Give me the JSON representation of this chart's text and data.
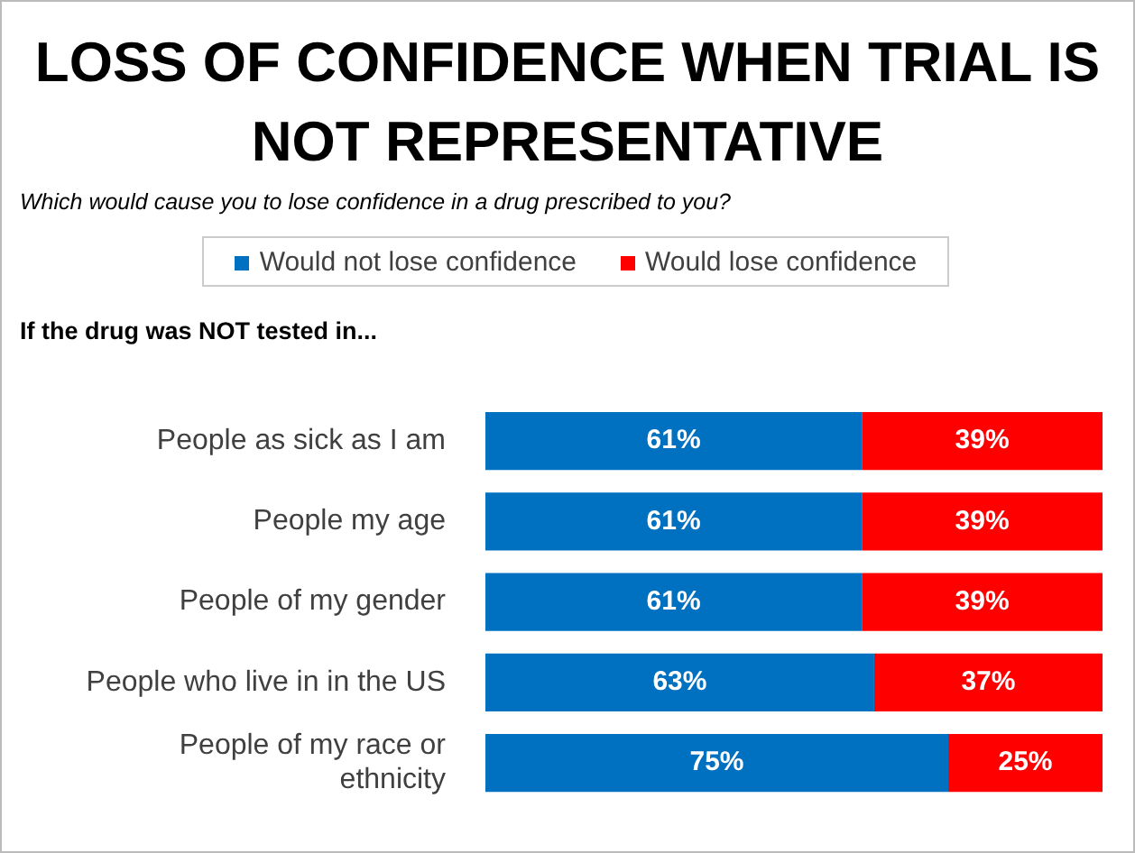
{
  "chart_data": {
    "type": "bar",
    "orientation": "horizontal",
    "stacked": true,
    "title": "LOSS OF CONFIDENCE WHEN TRIAL IS NOT REPRESENTATIVE",
    "subtitle": "Which would cause you to lose confidence in a drug prescribed to you?",
    "ylabel": "If the drug was NOT tested in...",
    "categories": [
      "People as sick as I am",
      "People my age",
      "People of my gender",
      "People who live in in the US",
      "People of my race or ethnicity"
    ],
    "series": [
      {
        "name": "Would not lose confidence",
        "color": "#0070c0",
        "values": [
          61,
          61,
          61,
          63,
          75
        ],
        "value_labels": [
          "61%",
          "61%",
          "61%",
          "63%",
          "75%"
        ]
      },
      {
        "name": "Would lose confidence",
        "color": "#ff0000",
        "values": [
          39,
          39,
          39,
          37,
          25
        ],
        "value_labels": [
          "39%",
          "39%",
          "39%",
          "37%",
          "25%"
        ]
      }
    ],
    "tick_labels": "y",
    "legend": "top"
  }
}
